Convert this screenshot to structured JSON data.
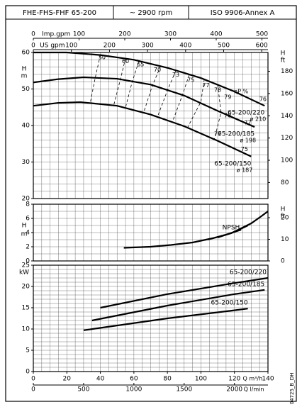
{
  "header": {
    "model": "FHE-FHS-FHF 65-200",
    "speed": "~ 2900 rpm",
    "standard": "ISO 9906-Annex A"
  },
  "code": "04725_B_DH",
  "chart_data": [
    {
      "type": "line",
      "xlim": [
        0,
        140
      ],
      "ylim": [
        20,
        60
      ],
      "yticks": [
        20,
        30,
        40,
        50,
        60
      ],
      "ylabel": "H",
      "yunit": "m",
      "y2lim": [
        65.6,
        196.9
      ],
      "y2ticks": [
        80,
        100,
        120,
        140,
        160,
        180
      ],
      "y2label": "H",
      "y2unit": "ft",
      "grid": true,
      "xgrid_step": 5,
      "ygrid_step": 2,
      "top_axes": [
        {
          "label": "Imp.gpm",
          "lim": [
            0,
            513.2
          ],
          "ticks": [
            0,
            100,
            200,
            300,
            400,
            500
          ]
        },
        {
          "label": "US gpm",
          "lim": [
            0,
            616.4
          ],
          "ticks": [
            0,
            100,
            200,
            300,
            400,
            500,
            600
          ]
        }
      ],
      "series": [
        {
          "name": "65-200/220",
          "diameter": "ø 210",
          "color": "#000000",
          "x": [
            0,
            20,
            40,
            60,
            80,
            100,
            120,
            138
          ],
          "values": [
            60,
            60,
            59.3,
            58,
            55.8,
            53,
            49.3,
            45.4
          ]
        },
        {
          "name": "65-200/185",
          "diameter": "ø 198",
          "color": "#000000",
          "x": [
            0,
            15,
            30,
            50,
            70,
            90,
            110,
            132
          ],
          "values": [
            51.8,
            52.7,
            53.2,
            52.8,
            51.2,
            48.2,
            44,
            39.6
          ]
        },
        {
          "name": "65-200/150",
          "diameter": "ø 187",
          "color": "#000000",
          "x": [
            0,
            15,
            28,
            50,
            70,
            90,
            110,
            130
          ],
          "values": [
            45.4,
            46.2,
            46.4,
            45.4,
            43,
            39.8,
            35.8,
            31.5
          ]
        }
      ],
      "efficiency_contours": [
        {
          "x": [
            40,
            37,
            34
          ],
          "y": [
            59.3,
            53.2,
            46.3
          ]
        },
        {
          "x": [
            55,
            52,
            48
          ],
          "y": [
            58.4,
            52.7,
            45.6
          ]
        },
        {
          "x": [
            63,
            59,
            55
          ],
          "y": [
            57.6,
            52,
            44.9
          ]
        },
        {
          "x": [
            76,
            71,
            66
          ],
          "y": [
            56.3,
            50.9,
            43.8
          ]
        },
        {
          "x": [
            85,
            80,
            74
          ],
          "y": [
            55,
            49.6,
            42.3
          ]
        },
        {
          "x": [
            93,
            89,
            83
          ],
          "y": [
            53.9,
            48.4,
            41
          ]
        },
        {
          "x": [
            102,
            100,
            96,
            92
          ],
          "y": [
            52.7,
            46.5,
            43,
            39.4
          ]
        },
        {
          "x": [
            110,
            112,
            108
          ],
          "y": [
            51.2,
            43.6,
            36.2
          ]
        }
      ],
      "labels": [
        {
          "text": "50",
          "x": 41,
          "y": 58.6
        },
        {
          "text": "60",
          "x": 55,
          "y": 57.6
        },
        {
          "text": "65",
          "x": 64,
          "y": 56.7
        },
        {
          "text": "70",
          "x": 74,
          "y": 55.2
        },
        {
          "text": "73",
          "x": 85,
          "y": 53.9
        },
        {
          "text": "75",
          "x": 94,
          "y": 52.4
        },
        {
          "text": "77",
          "x": 103,
          "y": 51
        },
        {
          "text": "78",
          "x": 110,
          "y": 49.7
        },
        {
          "text": "79",
          "x": 116,
          "y": 47.8
        },
        {
          "text": "ηP %",
          "x": 124,
          "y": 49.3
        },
        {
          "text": "76",
          "x": 137,
          "y": 47.2
        },
        {
          "text": "78",
          "x": 116,
          "y": 42.7
        },
        {
          "text": "77",
          "x": 128,
          "y": 40.8
        },
        {
          "text": "77",
          "x": 110,
          "y": 37.7
        },
        {
          "text": "75",
          "x": 126,
          "y": 33.5
        }
      ]
    },
    {
      "type": "line",
      "xlim": [
        0,
        140
      ],
      "ylim": [
        0,
        8
      ],
      "yticks": [
        0,
        2,
        4,
        6,
        8
      ],
      "ylabel": "H",
      "yunit": "m",
      "y2lim": [
        0,
        26.25
      ],
      "y2ticks": [
        0,
        10,
        20
      ],
      "y2label": "H",
      "y2unit": "ft",
      "grid": true,
      "xgrid_step": 5,
      "ygrid_step": 1,
      "series": [
        {
          "name": "NPSH",
          "color": "#000000",
          "x": [
            54,
            70,
            82,
            95,
            107,
            118,
            124,
            130,
            136,
            140
          ],
          "values": [
            1.85,
            2,
            2.25,
            2.6,
            3.2,
            3.9,
            4.6,
            5.3,
            6.3,
            7
          ]
        },
        {
          "color": "#000000",
          "x": [
            104,
            115,
            124
          ],
          "values": [
            3,
            3.7,
            4.4
          ]
        },
        {
          "color": "#000000",
          "x": [
            110,
            120,
            128
          ],
          "values": [
            3.3,
            4.1,
            5
          ]
        }
      ]
    },
    {
      "type": "line",
      "xlim": [
        0,
        140
      ],
      "ylim": [
        0,
        25
      ],
      "yticks": [
        0,
        5,
        10,
        15,
        20,
        25
      ],
      "ylabel": "kW",
      "grid": true,
      "xgrid_step": 5,
      "ygrid_step": 1,
      "xticks": [
        0,
        20,
        40,
        60,
        80,
        100,
        120,
        140
      ],
      "xlabel": "Q m³/h",
      "x2lim": [
        0,
        2333.3
      ],
      "x2ticks": [
        0,
        500,
        1000,
        1500,
        2000
      ],
      "x2label": "Q l/min",
      "series": [
        {
          "name": "65-200/220",
          "color": "#000000",
          "x": [
            40,
            80,
            120,
            140
          ],
          "values": [
            15,
            18.2,
            20.8,
            22
          ]
        },
        {
          "name": "65-200/185",
          "color": "#000000",
          "x": [
            35,
            80,
            120,
            138
          ],
          "values": [
            12,
            15.5,
            18.2,
            19.2
          ]
        },
        {
          "name": "65-200/150",
          "color": "#000000",
          "x": [
            30,
            80,
            120,
            128
          ],
          "values": [
            9.7,
            12.5,
            14.4,
            14.8
          ]
        }
      ]
    }
  ]
}
